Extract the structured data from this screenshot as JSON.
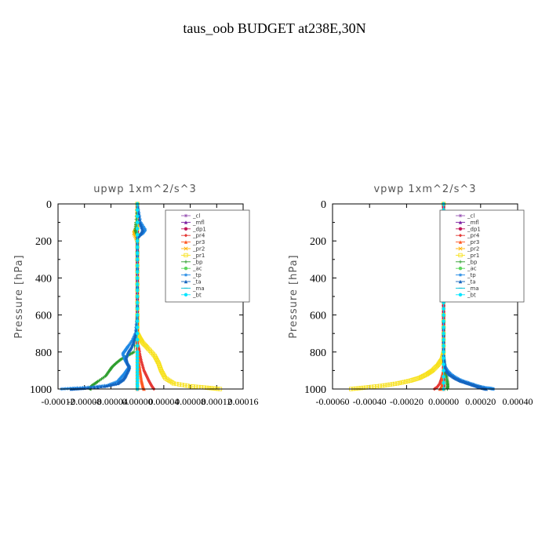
{
  "figure": {
    "title": "taus_oob  BUDGET at238E,30N"
  },
  "colors": {
    "_cl": "#9b59b6",
    "_mfl": "#7b1fa2",
    "_dp1": "#c2185b",
    "_pr4": "#e53935",
    "_pr3": "#ff5722",
    "_pr2": "#ffb300",
    "_pr1": "#f7e017",
    "_bp": "#2e9e2e",
    "_ac": "#5cd65c",
    "_tp": "#1e88e5",
    "_ta": "#1565c0",
    "_ma": "#00bcd4",
    "_bt": "#00e5ff"
  },
  "chart_data": [
    {
      "type": "line",
      "title": "upwp   1xm^2/s^3",
      "ylabel": "Pressure [hPa]",
      "xlabel": "",
      "y_reversed": true,
      "ylim": [
        1000,
        0
      ],
      "xlim": [
        -0.00012,
        0.00016
      ],
      "yticks": [
        "0",
        "200",
        "400",
        "600",
        "800",
        "1000"
      ],
      "xticks": [
        "-0.00012",
        "-0.00008",
        "-0.00004",
        "0.00000",
        "0.00004",
        "0.00008",
        "0.00012",
        "0.00016"
      ],
      "legend": [
        "_cl",
        "_mfl",
        "_dp1",
        "_pr4",
        "_pr3",
        "_pr2",
        "_pr1",
        "_bp",
        "_ac",
        "_tp",
        "_ta",
        "_ma",
        "_bt"
      ],
      "series": [
        {
          "name": "_cl",
          "x": [
            0,
            0,
            0,
            0,
            0,
            0,
            0,
            0,
            0,
            0,
            0,
            0
          ],
          "y": [
            0,
            100,
            200,
            300,
            400,
            500,
            600,
            700,
            800,
            900,
            950,
            1000
          ]
        },
        {
          "name": "_mfl",
          "x": [
            0,
            0,
            0,
            0,
            0,
            0,
            0,
            0,
            0,
            0,
            0,
            0
          ],
          "y": [
            0,
            100,
            200,
            300,
            400,
            500,
            600,
            700,
            800,
            900,
            950,
            1000
          ]
        },
        {
          "name": "_dp1",
          "x": [
            0,
            0,
            0,
            0,
            0,
            0,
            0,
            0,
            0,
            0,
            0,
            0
          ],
          "y": [
            0,
            100,
            200,
            300,
            400,
            500,
            600,
            700,
            800,
            900,
            950,
            1000
          ]
        },
        {
          "name": "_pr4",
          "x": [
            0,
            0,
            0,
            0,
            0,
            0,
            2e-06,
            3e-06,
            6e-06,
            1e-05,
            1.4e-05,
            1.8e-05,
            2.2e-05,
            2.5e-05
          ],
          "y": [
            0,
            200,
            400,
            600,
            700,
            750,
            780,
            800,
            850,
            900,
            930,
            960,
            985,
            1000
          ]
        },
        {
          "name": "_pr3",
          "x": [
            0,
            0,
            0,
            0,
            0,
            0,
            1e-06,
            2e-06,
            4e-06,
            6e-06,
            8e-06,
            1e-05
          ],
          "y": [
            0,
            200,
            400,
            600,
            700,
            780,
            800,
            850,
            900,
            950,
            980,
            1000
          ]
        },
        {
          "name": "_pr2",
          "x": [
            0,
            0,
            0,
            -3e-06,
            -5e-06,
            0,
            0,
            0,
            0,
            0,
            0
          ],
          "y": [
            0,
            100,
            130,
            145,
            160,
            200,
            400,
            600,
            800,
            900,
            1000
          ]
        },
        {
          "name": "_pr1",
          "x": [
            0,
            0,
            0,
            0,
            0,
            3e-06,
            8e-06,
            1.6e-05,
            2.6e-05,
            3.2e-05,
            3.6e-05,
            4.2e-05,
            5.5e-05,
            8e-05,
            0.000105,
            0.000125
          ],
          "y": [
            0,
            200,
            400,
            600,
            700,
            720,
            750,
            780,
            820,
            860,
            900,
            940,
            970,
            985,
            993,
            1000
          ]
        },
        {
          "name": "_bp",
          "x": [
            0,
            -2e-06,
            -3e-06,
            -2e-06,
            0,
            0,
            0,
            -5e-06,
            -1.5e-05,
            -2.5e-05,
            -3.2e-05,
            -3.8e-05,
            -4.2e-05,
            -4.8e-05,
            -6e-05,
            -6.8e-05,
            -7.3e-05,
            -7e-05
          ],
          "y": [
            0,
            100,
            140,
            150,
            170,
            300,
            600,
            800,
            820,
            840,
            860,
            880,
            900,
            930,
            960,
            980,
            995,
            1000
          ]
        },
        {
          "name": "_ac",
          "x": [
            0,
            0,
            0,
            0,
            0,
            0,
            0
          ],
          "y": [
            0,
            200,
            400,
            600,
            800,
            900,
            1000
          ]
        },
        {
          "name": "_tp",
          "x": [
            0,
            5e-06,
            1.2e-05,
            8e-06,
            0,
            0,
            0,
            -3e-06,
            -8e-06,
            -1.4e-05,
            -1.8e-05,
            -2.2e-05,
            -1.9e-05,
            -1.6e-05,
            -1.2e-05,
            -1.6e-05,
            -2e-05,
            -2.5e-05,
            -3e-05,
            -4.5e-05,
            -7e-05,
            -9.5e-05,
            -0.000115
          ],
          "y": [
            0,
            100,
            140,
            160,
            180,
            300,
            600,
            700,
            740,
            770,
            790,
            810,
            840,
            860,
            880,
            900,
            920,
            940,
            960,
            980,
            990,
            995,
            1000
          ]
        },
        {
          "name": "_ta",
          "x": [
            0,
            4e-06,
            8e-06,
            5e-06,
            0,
            0,
            0,
            -2e-06,
            -6e-06,
            -1e-05,
            -1.4e-05,
            -1.7e-05,
            -1.5e-05,
            -1.2e-05,
            -1.4e-05,
            -1.8e-05,
            -2.2e-05,
            -3e-05,
            -5e-05,
            -8e-05,
            -0.0001
          ],
          "y": [
            0,
            100,
            140,
            160,
            180,
            300,
            600,
            700,
            750,
            780,
            800,
            830,
            860,
            880,
            900,
            930,
            950,
            970,
            985,
            995,
            1000
          ]
        },
        {
          "name": "_ma",
          "x": [
            0,
            0,
            0,
            0,
            0,
            0,
            0
          ],
          "y": [
            0,
            200,
            400,
            600,
            800,
            900,
            1000
          ]
        },
        {
          "name": "_bt",
          "x": [
            0,
            0,
            0,
            0,
            0,
            0,
            0
          ],
          "y": [
            0,
            200,
            400,
            600,
            800,
            900,
            1000
          ]
        }
      ]
    },
    {
      "type": "line",
      "title": "vpwp   1xm^2/s^3",
      "ylabel": "Pressure [hPa]",
      "xlabel": "",
      "y_reversed": true,
      "ylim": [
        1000,
        0
      ],
      "xlim": [
        -0.0006,
        0.0004
      ],
      "yticks": [
        "0",
        "200",
        "400",
        "600",
        "800",
        "1000"
      ],
      "xticks": [
        "-0.00060",
        "-0.00040",
        "-0.00020",
        "0.00000",
        "0.00020",
        "0.00040"
      ],
      "legend": [
        "_cl",
        "_mfl",
        "_dp1",
        "_pr4",
        "_pr3",
        "_pr2",
        "_pr1",
        "_bp",
        "_ac",
        "_tp",
        "_ta",
        "_ma",
        "_bt"
      ],
      "series": [
        {
          "name": "_cl",
          "x": [
            0,
            0,
            0,
            0,
            0,
            0,
            0,
            0,
            0,
            0,
            0
          ],
          "y": [
            0,
            100,
            200,
            300,
            400,
            500,
            600,
            700,
            800,
            900,
            1000
          ]
        },
        {
          "name": "_mfl",
          "x": [
            0,
            0,
            0,
            0,
            0,
            0,
            0,
            0,
            0,
            0,
            0
          ],
          "y": [
            0,
            100,
            200,
            300,
            400,
            500,
            600,
            700,
            800,
            900,
            1000
          ]
        },
        {
          "name": "_dp1",
          "x": [
            0,
            0,
            0,
            0,
            0,
            0,
            0,
            0,
            0,
            0,
            0
          ],
          "y": [
            0,
            100,
            200,
            300,
            400,
            500,
            600,
            700,
            800,
            900,
            1000
          ]
        },
        {
          "name": "_pr4",
          "x": [
            0,
            0,
            0,
            0,
            -1e-05,
            -2e-05,
            -3.5e-05,
            -5e-05
          ],
          "y": [
            0,
            400,
            800,
            900,
            940,
            970,
            990,
            1000
          ]
        },
        {
          "name": "_pr3",
          "x": [
            0,
            0,
            0,
            0,
            -5e-06,
            -1e-05,
            -2e-05
          ],
          "y": [
            0,
            400,
            800,
            900,
            950,
            985,
            1000
          ]
        },
        {
          "name": "_pr2",
          "x": [
            0,
            0,
            0,
            0,
            0,
            0
          ],
          "y": [
            0,
            200,
            400,
            600,
            800,
            1000
          ]
        },
        {
          "name": "_pr1",
          "x": [
            0,
            0,
            0,
            -1e-05,
            -3e-05,
            -6e-05,
            -9e-05,
            -0.00013,
            -0.00018,
            -0.00025,
            -0.00033,
            -0.00042,
            -0.0005
          ],
          "y": [
            0,
            600,
            800,
            840,
            870,
            900,
            920,
            940,
            955,
            970,
            982,
            992,
            1000
          ]
        },
        {
          "name": "_bp",
          "x": [
            0,
            0,
            0,
            5e-06,
            1e-05,
            1.5e-05,
            2e-05,
            2.2e-05,
            2e-05
          ],
          "y": [
            0,
            600,
            820,
            860,
            900,
            930,
            960,
            985,
            1000
          ]
        },
        {
          "name": "_ac",
          "x": [
            0,
            0,
            0,
            0,
            0,
            0
          ],
          "y": [
            0,
            200,
            400,
            600,
            800,
            1000
          ]
        },
        {
          "name": "_tp",
          "x": [
            0,
            0,
            0,
            3e-06,
            8e-06,
            2e-05,
            4e-05,
            7e-05,
            0.0001,
            0.00013,
            0.00016,
            0.00019,
            0.00022,
            0.00025,
            0.00027
          ],
          "y": [
            0,
            600,
            820,
            850,
            880,
            900,
            920,
            940,
            955,
            965,
            975,
            985,
            992,
            996,
            1000
          ]
        },
        {
          "name": "_ta",
          "x": [
            0,
            0,
            0,
            2e-06,
            6e-06,
            1.5e-05,
            3e-05,
            6e-05,
            9e-05,
            0.00012,
            0.00015,
            0.00018,
            0.0002,
            0.00023
          ],
          "y": [
            0,
            600,
            820,
            850,
            880,
            900,
            920,
            940,
            955,
            965,
            975,
            985,
            992,
            1000
          ]
        },
        {
          "name": "_ma",
          "x": [
            0,
            0,
            0,
            0,
            0,
            0
          ],
          "y": [
            0,
            200,
            400,
            600,
            800,
            1000
          ]
        },
        {
          "name": "_bt",
          "x": [
            0,
            0,
            0,
            0,
            0,
            0
          ],
          "y": [
            0,
            200,
            400,
            600,
            800,
            1000
          ]
        }
      ]
    }
  ]
}
